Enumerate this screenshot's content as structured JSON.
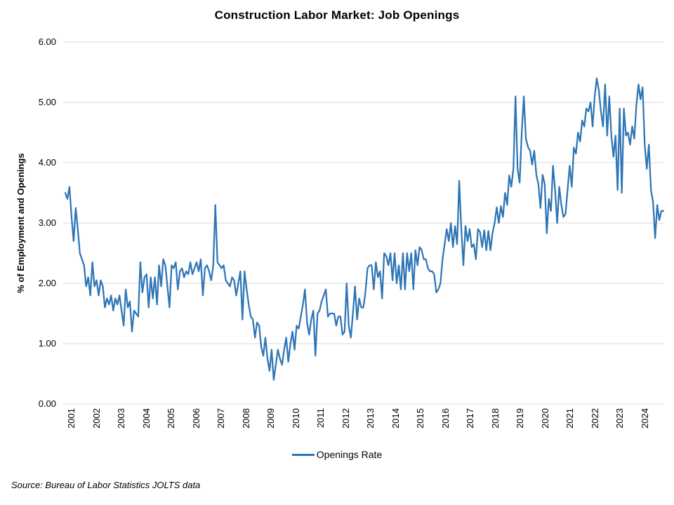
{
  "title": "Construction Labor Market: Job Openings",
  "legend": {
    "label": "Openings Rate"
  },
  "source_note": "Source: Bureau of Labor Statistics JOLTS data",
  "colors": {
    "line": "#2E75B6",
    "gridline": "#D9D9D9",
    "text": "#000000"
  },
  "chart_data": {
    "type": "line",
    "title": "Construction Labor Market: Job Openings",
    "xlabel": "",
    "ylabel": "% of Employment and Openings",
    "ylim": [
      0,
      6
    ],
    "yticks": [
      0,
      1,
      2,
      3,
      4,
      5,
      6
    ],
    "ytick_decimals": 2,
    "grid": "horizontal",
    "legend_position": "bottom",
    "frequency": "monthly",
    "x_years": [
      2001,
      2002,
      2003,
      2004,
      2005,
      2006,
      2007,
      2008,
      2009,
      2010,
      2011,
      2012,
      2013,
      2014,
      2015,
      2016,
      2017,
      2018,
      2019,
      2020,
      2021,
      2022,
      2023,
      2024
    ],
    "series": [
      {
        "name": "Openings Rate",
        "color": "#2E75B6",
        "monthly_values_by_year": {
          "2001": [
            3.5,
            3.4,
            3.6,
            3.1,
            2.7,
            3.25,
            2.9,
            2.5,
            2.4,
            2.3,
            1.95,
            2.1
          ],
          "2002": [
            1.8,
            2.35,
            1.95,
            2.05,
            1.8,
            2.05,
            1.95,
            1.6,
            1.75,
            1.65,
            1.8,
            1.55
          ],
          "2003": [
            1.75,
            1.65,
            1.8,
            1.55,
            1.3,
            1.9,
            1.6,
            1.7,
            1.2,
            1.55,
            1.5,
            1.45
          ],
          "2004": [
            2.35,
            1.85,
            2.1,
            2.15,
            1.6,
            2.1,
            1.75,
            2.1,
            1.65,
            2.3,
            1.95,
            2.4
          ],
          "2005": [
            2.3,
            1.95,
            1.6,
            2.3,
            2.25,
            2.35,
            1.9,
            2.2,
            2.25,
            2.1,
            2.2,
            2.15
          ],
          "2006": [
            2.35,
            2.15,
            2.25,
            2.35,
            2.2,
            2.4,
            1.8,
            2.25,
            2.3,
            2.2,
            2.05,
            2.3
          ],
          "2007": [
            3.3,
            2.35,
            2.3,
            2.25,
            2.3,
            2.05,
            2.0,
            1.95,
            2.1,
            2.05,
            1.8,
            2.0
          ],
          "2008": [
            2.2,
            1.4,
            2.2,
            1.9,
            1.65,
            1.45,
            1.4,
            1.1,
            1.35,
            1.3,
            0.95,
            0.8
          ],
          "2009": [
            1.1,
            0.75,
            0.55,
            0.9,
            0.4,
            0.65,
            0.9,
            0.75,
            0.65,
            0.9,
            1.1,
            0.7
          ],
          "2010": [
            1.0,
            1.2,
            0.9,
            1.3,
            1.25,
            1.45,
            1.65,
            1.9,
            1.35,
            1.15,
            1.4,
            1.55
          ],
          "2011": [
            0.8,
            1.5,
            1.55,
            1.7,
            1.8,
            1.9,
            1.45,
            1.5,
            1.5,
            1.5,
            1.3,
            1.45
          ],
          "2012": [
            1.45,
            1.15,
            1.2,
            2.0,
            1.3,
            1.1,
            1.5,
            1.95,
            1.4,
            1.75,
            1.6,
            1.6
          ],
          "2013": [
            1.85,
            2.25,
            2.3,
            2.3,
            1.9,
            2.35,
            2.1,
            2.2,
            1.75,
            2.5,
            2.45,
            2.3
          ],
          "2014": [
            2.5,
            2.05,
            2.5,
            2.0,
            2.3,
            1.9,
            2.5,
            1.9,
            2.5,
            2.2,
            2.5,
            1.9
          ],
          "2015": [
            2.55,
            2.3,
            2.6,
            2.55,
            2.4,
            2.4,
            2.25,
            2.2,
            2.2,
            2.15,
            1.85,
            1.9
          ],
          "2016": [
            2.0,
            2.4,
            2.65,
            2.9,
            2.7,
            3.0,
            2.6,
            2.95,
            2.65,
            3.7,
            2.9,
            2.3
          ],
          "2017": [
            2.95,
            2.7,
            2.9,
            2.6,
            2.65,
            2.4,
            2.9,
            2.85,
            2.6,
            2.88,
            2.55,
            2.87
          ],
          "2018": [
            2.55,
            2.84,
            3.0,
            3.26,
            3.0,
            3.28,
            3.1,
            3.5,
            3.3,
            3.79,
            3.6,
            3.9
          ],
          "2019": [
            5.1,
            3.9,
            3.67,
            4.5,
            5.1,
            4.4,
            4.26,
            4.2,
            3.97,
            4.2,
            3.8,
            3.64
          ],
          "2020": [
            3.25,
            3.8,
            3.65,
            2.83,
            3.4,
            3.2,
            3.95,
            3.55,
            3.0,
            3.6,
            3.3,
            3.1
          ],
          "2021": [
            3.15,
            3.55,
            3.95,
            3.6,
            4.25,
            4.15,
            4.5,
            4.35,
            4.7,
            4.6,
            4.9,
            4.85
          ],
          "2022": [
            5.0,
            4.6,
            5.1,
            5.4,
            5.2,
            4.85,
            4.6,
            5.3,
            4.45,
            5.1,
            4.45,
            4.1
          ],
          "2023": [
            4.45,
            3.55,
            4.9,
            3.5,
            4.9,
            4.45,
            4.5,
            4.3,
            4.6,
            4.4,
            4.95,
            5.3
          ],
          "2024": [
            5.05,
            5.25,
            4.3,
            3.9,
            4.3,
            3.55,
            3.35,
            2.75,
            3.3,
            3.05,
            3.2,
            3.2
          ]
        }
      }
    ]
  }
}
